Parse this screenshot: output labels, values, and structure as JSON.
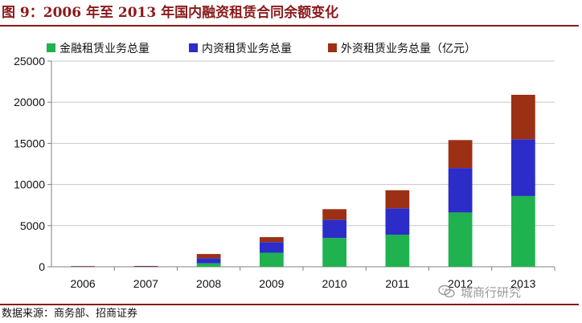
{
  "figure": {
    "title": "图 9：2006 年至 2013 年国内融资租赁合同余额变化",
    "source": "数据来源：商务部、招商证券",
    "watermark": "城商行研究",
    "watermark_icon": "wechat-icon"
  },
  "chart_data": {
    "type": "bar",
    "stacked": true,
    "title": "",
    "xlabel": "",
    "ylabel": "",
    "categories": [
      "2006",
      "2007",
      "2008",
      "2009",
      "2010",
      "2011",
      "2012",
      "2013"
    ],
    "series": [
      {
        "name": "金融租赁业务总量",
        "color": "#1fb24f",
        "values": [
          0,
          0,
          420,
          1700,
          3500,
          3900,
          6600,
          8600
        ]
      },
      {
        "name": "内资租赁业务总量",
        "color": "#2c2cc8",
        "values": [
          40,
          40,
          630,
          1300,
          2200,
          3200,
          5400,
          6900
        ]
      },
      {
        "name": "外资租赁业务总量（亿元）",
        "color": "#9c3014",
        "values": [
          40,
          60,
          500,
          600,
          1300,
          2200,
          3400,
          5400
        ]
      }
    ],
    "ylim": [
      0,
      25000
    ],
    "yticks": [
      0,
      5000,
      10000,
      15000,
      20000,
      25000
    ],
    "grid": true,
    "legend": "top"
  }
}
